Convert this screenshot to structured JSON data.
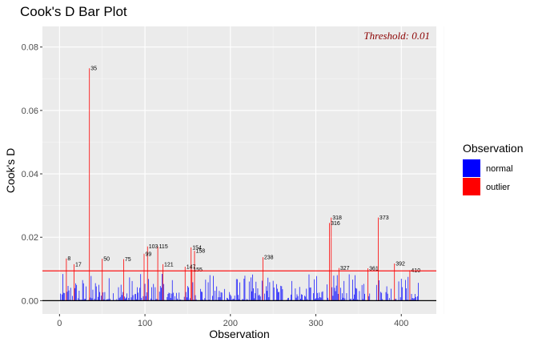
{
  "chart_data": {
    "type": "bar",
    "title": "Cook's D Bar Plot",
    "xlabel": "Observation",
    "ylabel": "Cook's D",
    "xlim": [
      -20,
      441
    ],
    "ylim": [
      -0.0042,
      0.0865
    ],
    "x_ticks": [
      0,
      100,
      200,
      300,
      400
    ],
    "x_tick_labels": [
      "0",
      "100",
      "200",
      "300",
      "400"
    ],
    "y_ticks": [
      0.0,
      0.02,
      0.04,
      0.06,
      0.08
    ],
    "y_tick_labels": [
      "0.00",
      "0.02",
      "0.04",
      "0.06",
      "0.08"
    ],
    "threshold": 0.0094,
    "threshold_label": "Threshold: 0.01",
    "grid": true,
    "legend_position": "right",
    "legend": {
      "title": "Observation",
      "items": [
        {
          "label": "normal",
          "color": "#0000ff"
        },
        {
          "label": "outlier",
          "color": "#ff0000"
        }
      ]
    },
    "colors": {
      "normal": "#0000ff",
      "outlier": "#ff0000",
      "threshold": "#ff0000",
      "threshold_text": "#8b0000",
      "panel": "#ebebeb"
    },
    "outliers": [
      {
        "obs": 8,
        "value": 0.0133,
        "label": "8"
      },
      {
        "obs": 17,
        "value": 0.0115,
        "label": "17"
      },
      {
        "obs": 35,
        "value": 0.0733,
        "label": "35"
      },
      {
        "obs": 50,
        "value": 0.0132,
        "label": "50"
      },
      {
        "obs": 75,
        "value": 0.0131,
        "label": "75"
      },
      {
        "obs": 99,
        "value": 0.0148,
        "label": "99"
      },
      {
        "obs": 103,
        "value": 0.0171,
        "label": "103"
      },
      {
        "obs": 115,
        "value": 0.0171,
        "label": "115"
      },
      {
        "obs": 121,
        "value": 0.0115,
        "label": "121"
      },
      {
        "obs": 147,
        "value": 0.0107,
        "label": "147"
      },
      {
        "obs": 154,
        "value": 0.0168,
        "label": "154"
      },
      {
        "obs": 155,
        "value": 0.0098,
        "label": "155"
      },
      {
        "obs": 158,
        "value": 0.0157,
        "label": "158"
      },
      {
        "obs": 238,
        "value": 0.0137,
        "label": "238"
      },
      {
        "obs": 316,
        "value": 0.0245,
        "label": "316"
      },
      {
        "obs": 318,
        "value": 0.0262,
        "label": "318"
      },
      {
        "obs": 327,
        "value": 0.0103,
        "label": "327"
      },
      {
        "obs": 361,
        "value": 0.0102,
        "label": "361"
      },
      {
        "obs": 373,
        "value": 0.0262,
        "label": "373"
      },
      {
        "obs": 392,
        "value": 0.0117,
        "label": "392"
      },
      {
        "obs": 410,
        "value": 0.0096,
        "label": "410"
      }
    ],
    "normal_count": 420,
    "normal_max": 0.0085
  }
}
